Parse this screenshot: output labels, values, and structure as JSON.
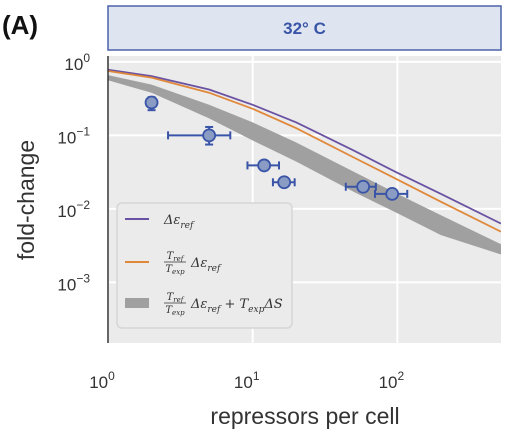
{
  "panel_label": "(A)",
  "chart_data": {
    "type": "line",
    "title": "32° C",
    "xlabel": "repressors per cell",
    "ylabel": "fold-change",
    "xscale": "log",
    "yscale": "log",
    "xlim": [
      1,
      520
    ],
    "ylim": [
      0.00015,
      1.2
    ],
    "xticks": [
      {
        "base": "10",
        "exp": "0",
        "value": 1
      },
      {
        "base": "10",
        "exp": "1",
        "value": 10
      },
      {
        "base": "10",
        "exp": "2",
        "value": 100
      }
    ],
    "yticks": [
      {
        "base": "10",
        "exp": "0",
        "value": 1
      },
      {
        "base": "10",
        "exp": "−1",
        "value": 0.1
      },
      {
        "base": "10",
        "exp": "−2",
        "value": 0.01
      },
      {
        "base": "10",
        "exp": "−3",
        "value": 0.001
      }
    ],
    "grid": true,
    "legend_position": "lower-left",
    "series": [
      {
        "kind": "line",
        "color": "#6a52a3",
        "x": [
          1,
          2,
          5,
          10,
          20,
          50,
          100,
          200,
          520
        ],
        "y": [
          0.78,
          0.64,
          0.42,
          0.26,
          0.15,
          0.062,
          0.031,
          0.016,
          0.0063
        ]
      },
      {
        "kind": "line",
        "color": "#e0883a",
        "x": [
          1,
          2,
          5,
          10,
          20,
          50,
          100,
          200,
          520
        ],
        "y": [
          0.75,
          0.61,
          0.38,
          0.23,
          0.125,
          0.05,
          0.025,
          0.0125,
          0.0049
        ]
      },
      {
        "kind": "band",
        "color": "#a0a0a0",
        "x": [
          1,
          2,
          5,
          10,
          20,
          50,
          100,
          200,
          520
        ],
        "y_upper": [
          0.66,
          0.49,
          0.26,
          0.15,
          0.08,
          0.032,
          0.016,
          0.0082,
          0.0033
        ],
        "y_lower": [
          0.56,
          0.38,
          0.17,
          0.085,
          0.044,
          0.017,
          0.0087,
          0.0044,
          0.0024
        ]
      },
      {
        "kind": "scatter",
        "color": "#3a55a8",
        "fill": "#8a9cc4",
        "points": [
          {
            "x": 2.0,
            "y": 0.28,
            "xlo": 1.85,
            "xhi": 2.15,
            "ylo": 0.22,
            "yhi": 0.33
          },
          {
            "x": 5.0,
            "y": 0.1,
            "xlo": 2.6,
            "xhi": 7.0,
            "ylo": 0.075,
            "yhi": 0.13
          },
          {
            "x": 12.0,
            "y": 0.039,
            "xlo": 9.2,
            "xhi": 15.2,
            "ylo": 0.036,
            "yhi": 0.042
          },
          {
            "x": 16.5,
            "y": 0.023,
            "xlo": 13.8,
            "xhi": 19.5,
            "ylo": 0.021,
            "yhi": 0.025
          },
          {
            "x": 58.0,
            "y": 0.02,
            "xlo": 44.0,
            "xhi": 71.0,
            "ylo": 0.019,
            "yhi": 0.021
          },
          {
            "x": 92.0,
            "y": 0.016,
            "xlo": 70.0,
            "xhi": 117.0,
            "ylo": 0.015,
            "yhi": 0.017
          }
        ]
      }
    ],
    "legend": [
      {
        "kind": "line",
        "color": "#6a52a3",
        "parts": [
          {
            "t": "Δε"
          },
          {
            "t": "ref",
            "sub": true
          }
        ]
      },
      {
        "kind": "line",
        "color": "#e0883a",
        "frac": {
          "num": "T",
          "num_sub": "ref",
          "den": "T",
          "den_sub": "exp"
        },
        "parts": [
          {
            "t": "Δε"
          },
          {
            "t": "ref",
            "sub": true
          }
        ]
      },
      {
        "kind": "band",
        "color": "#a0a0a0",
        "frac": {
          "num": "T",
          "num_sub": "ref",
          "den": "T",
          "den_sub": "exp"
        },
        "parts": [
          {
            "t": "Δε"
          },
          {
            "t": "ref",
            "sub": true
          },
          {
            "t": " + T"
          },
          {
            "t": "exp",
            "sub": true
          },
          {
            "t": "ΔS"
          }
        ]
      }
    ]
  }
}
